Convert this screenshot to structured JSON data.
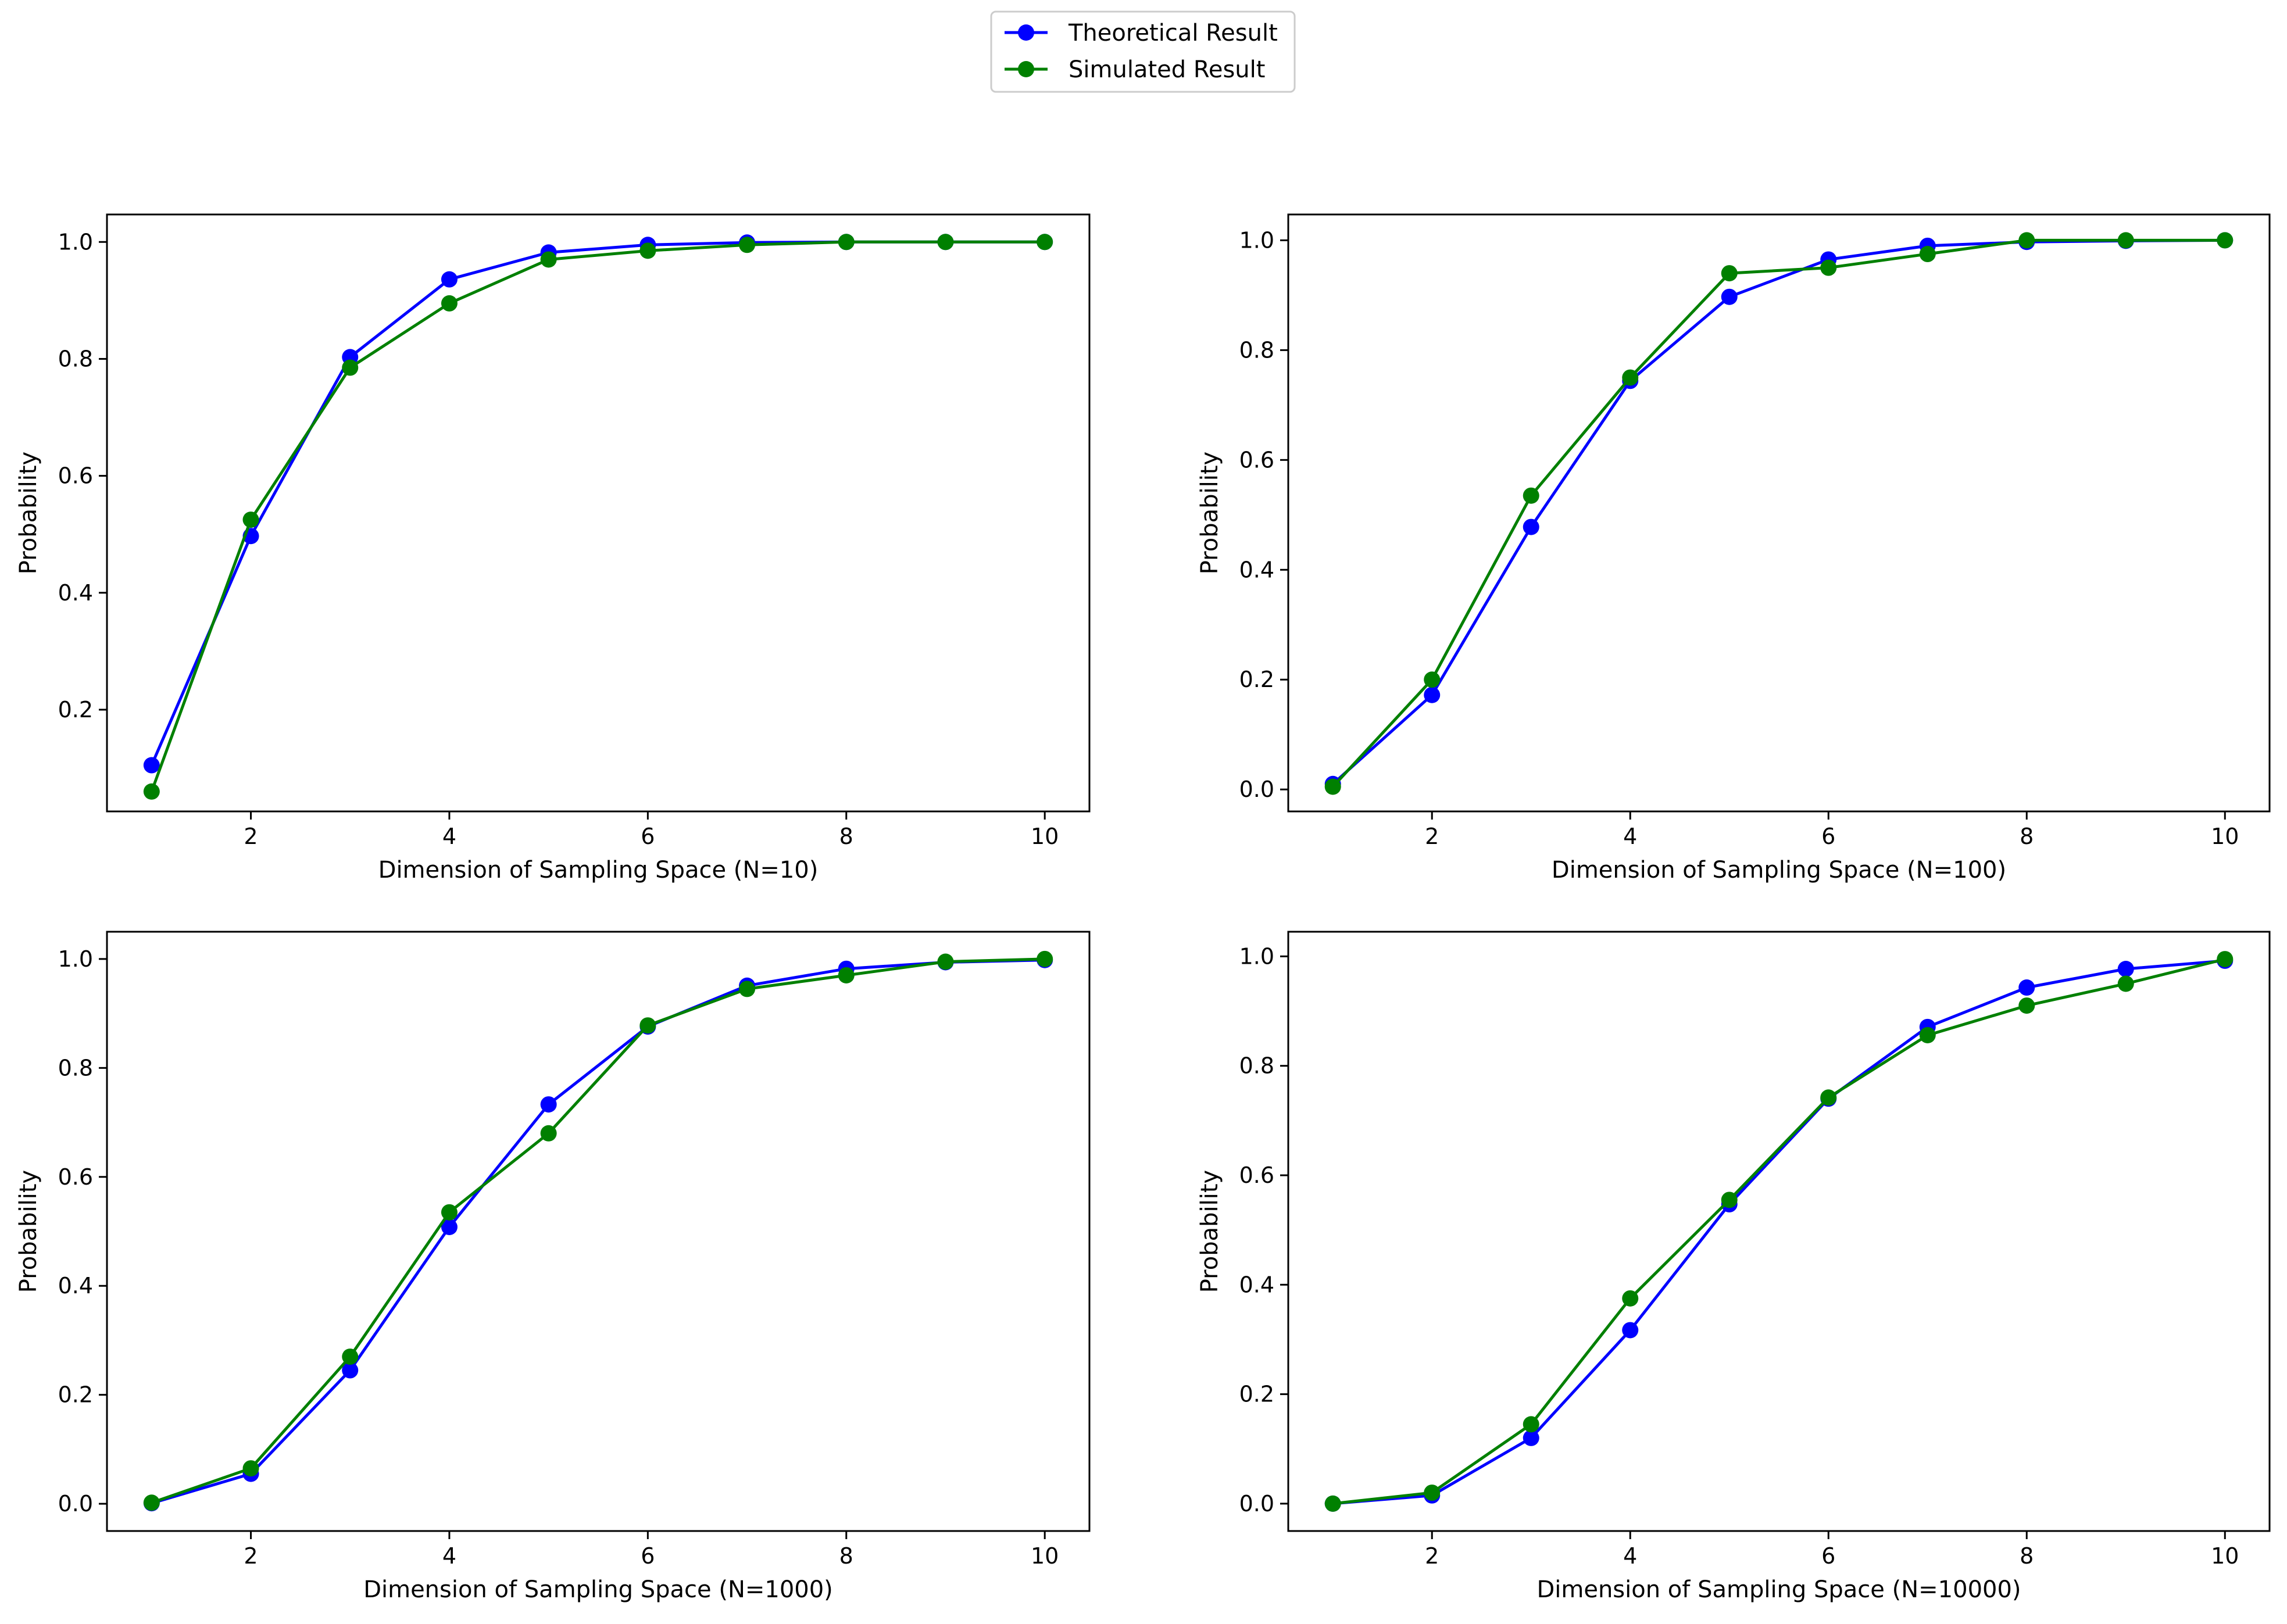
{
  "legend": {
    "placement": "top-center",
    "entries": [
      {
        "label": "Theoretical Result",
        "color": "#0000ff"
      },
      {
        "label": "Simulated Result",
        "color": "#008000"
      }
    ]
  },
  "chart_data": [
    {
      "type": "line",
      "title": "",
      "xlabel": "Dimension of Sampling Space (N=10)",
      "ylabel": "Probability",
      "xlim": [
        0.55,
        10.45
      ],
      "ylim": [
        0.026,
        1.047
      ],
      "xticks": [
        2,
        4,
        6,
        8,
        10
      ],
      "yticks": [
        0.2,
        0.4,
        0.6,
        0.8,
        1.0
      ],
      "grid": false,
      "x": [
        1,
        2,
        3,
        4,
        5,
        6,
        7,
        8,
        9,
        10
      ],
      "series": [
        {
          "name": "Theoretical Result",
          "color": "#0000ff",
          "values": [
            0.105,
            0.497,
            0.803,
            0.936,
            0.982,
            0.995,
            0.999,
            1.0,
            1.0,
            1.0
          ]
        },
        {
          "name": "Simulated Result",
          "color": "#008000",
          "values": [
            0.06,
            0.525,
            0.785,
            0.895,
            0.97,
            0.985,
            0.995,
            1.0,
            1.0,
            1.0
          ]
        }
      ]
    },
    {
      "type": "line",
      "title": "",
      "xlabel": "Dimension of Sampling Space (N=100)",
      "ylabel": "Probability",
      "xlim": [
        0.55,
        10.45
      ],
      "ylim": [
        -0.04,
        1.047
      ],
      "xticks": [
        2,
        4,
        6,
        8,
        10
      ],
      "yticks": [
        0.0,
        0.2,
        0.4,
        0.6,
        0.8,
        1.0
      ],
      "grid": false,
      "x": [
        1,
        2,
        3,
        4,
        5,
        6,
        7,
        8,
        9,
        10
      ],
      "series": [
        {
          "name": "Theoretical Result",
          "color": "#0000ff",
          "values": [
            0.01,
            0.172,
            0.478,
            0.744,
            0.897,
            0.965,
            0.99,
            0.997,
            0.999,
            1.0
          ]
        },
        {
          "name": "Simulated Result",
          "color": "#008000",
          "values": [
            0.005,
            0.2,
            0.535,
            0.75,
            0.94,
            0.95,
            0.975,
            1.0,
            1.0,
            1.0
          ]
        }
      ]
    },
    {
      "type": "line",
      "title": "",
      "xlabel": "Dimension of Sampling Space (N=1000)",
      "ylabel": "Probability",
      "xlim": [
        0.55,
        10.45
      ],
      "ylim": [
        -0.05,
        1.05
      ],
      "xticks": [
        2,
        4,
        6,
        8,
        10
      ],
      "yticks": [
        0.0,
        0.2,
        0.4,
        0.6,
        0.8,
        1.0
      ],
      "grid": false,
      "x": [
        1,
        2,
        3,
        4,
        5,
        6,
        7,
        8,
        9,
        10
      ],
      "series": [
        {
          "name": "Theoretical Result",
          "color": "#0000ff",
          "values": [
            0.001,
            0.055,
            0.245,
            0.508,
            0.733,
            0.876,
            0.951,
            0.982,
            0.994,
            0.998
          ]
        },
        {
          "name": "Simulated Result",
          "color": "#008000",
          "values": [
            0.002,
            0.065,
            0.27,
            0.535,
            0.68,
            0.878,
            0.945,
            0.97,
            0.995,
            1.0
          ]
        }
      ]
    },
    {
      "type": "line",
      "title": "",
      "xlabel": "Dimension of Sampling Space (N=10000)",
      "ylabel": "Probability",
      "xlim": [
        0.55,
        10.45
      ],
      "ylim": [
        -0.05,
        1.045
      ],
      "xticks": [
        2,
        4,
        6,
        8,
        10
      ],
      "yticks": [
        0.0,
        0.2,
        0.4,
        0.6,
        0.8,
        1.0
      ],
      "grid": false,
      "x": [
        1,
        2,
        3,
        4,
        5,
        6,
        7,
        8,
        9,
        10
      ],
      "series": [
        {
          "name": "Theoretical Result",
          "color": "#0000ff",
          "values": [
            0.0,
            0.015,
            0.12,
            0.317,
            0.547,
            0.74,
            0.871,
            0.943,
            0.977,
            0.992
          ]
        },
        {
          "name": "Simulated Result",
          "color": "#008000",
          "values": [
            0.0,
            0.02,
            0.145,
            0.375,
            0.555,
            0.742,
            0.856,
            0.91,
            0.95,
            0.995
          ]
        }
      ]
    }
  ]
}
